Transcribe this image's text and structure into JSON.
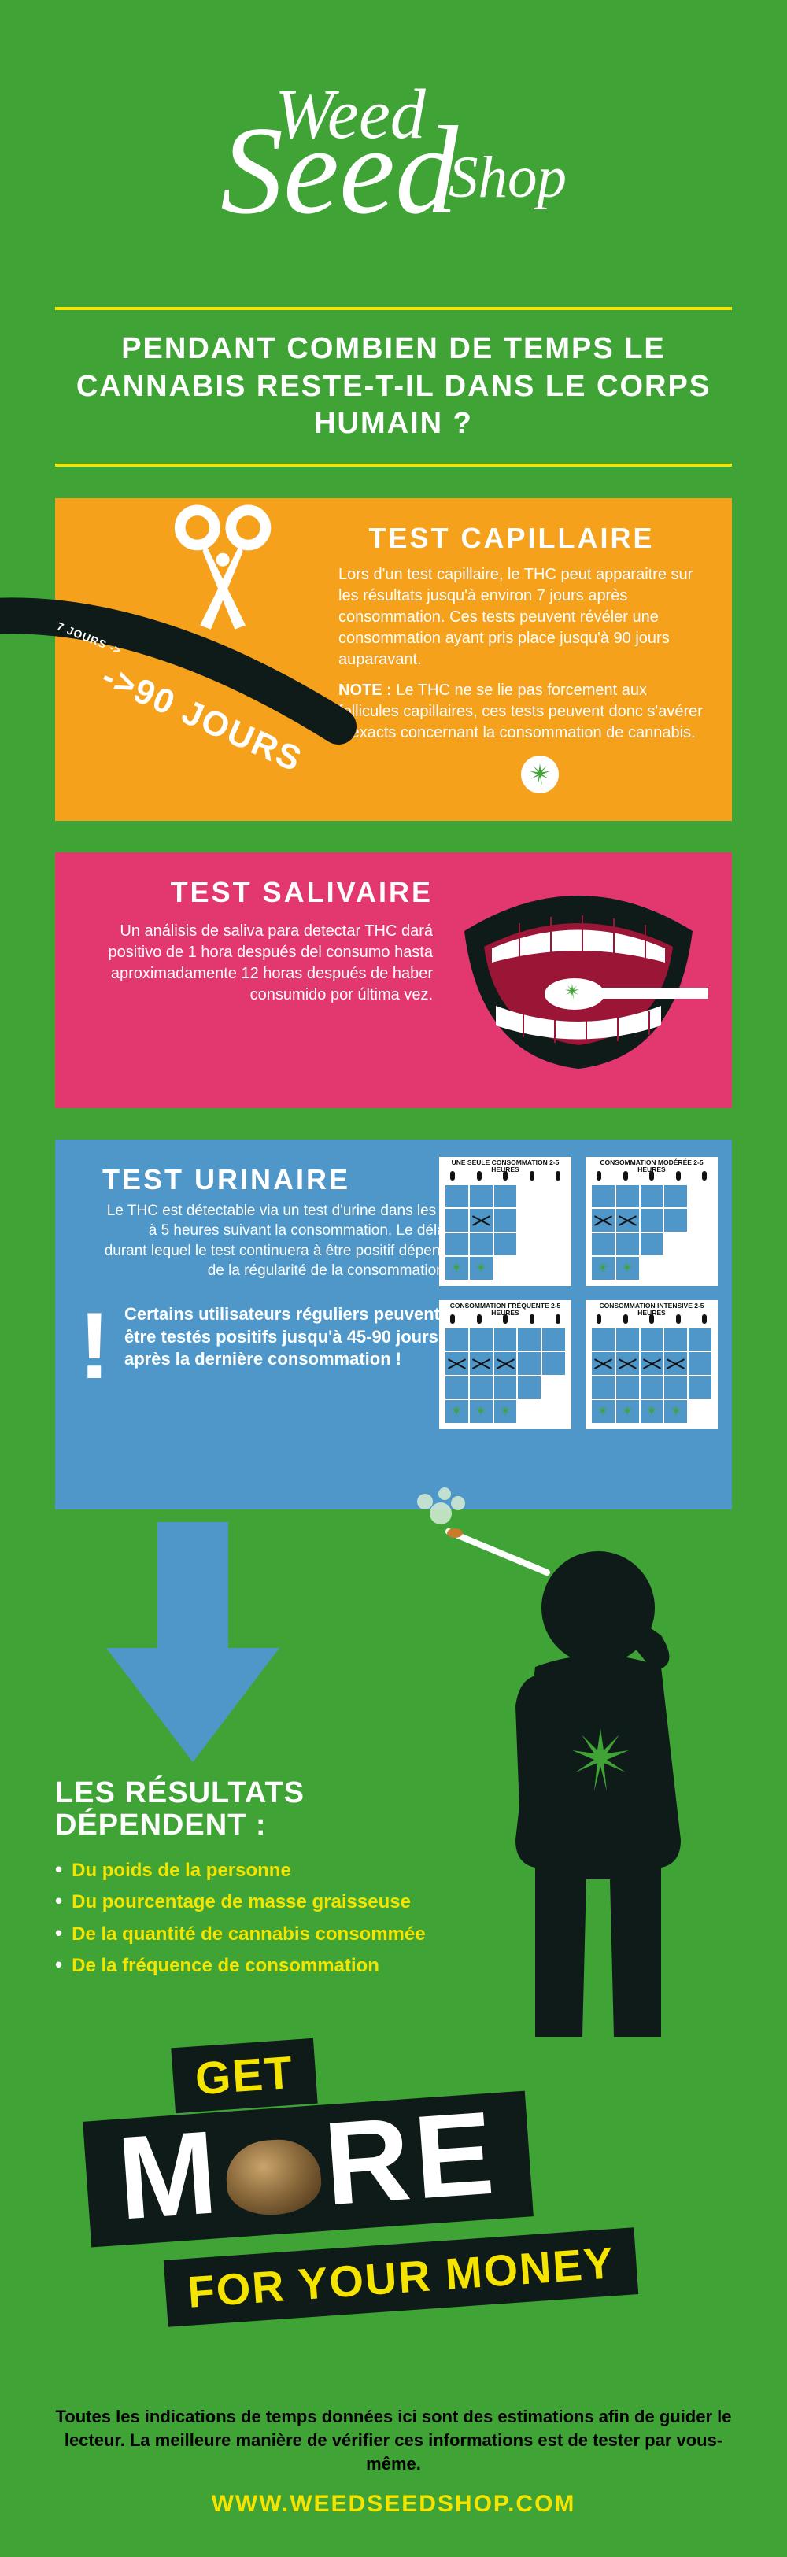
{
  "colors": {
    "bg": "#3fa435",
    "accent_yellow": "#f5e400",
    "panel_orange": "#f6a11c",
    "panel_pink": "#e2386f",
    "panel_blue": "#4f97c8",
    "dark": "#0e1b19",
    "white": "#ffffff",
    "black": "#000000"
  },
  "logo": {
    "line1": "Weed",
    "line2": "Seed",
    "line3": "Shop"
  },
  "title": "PENDANT COMBIEN DE TEMPS LE CANNABIS RESTE-T-IL DANS LE CORPS HUMAIN ?",
  "panel1": {
    "title": "TEST CAPILLAIRE",
    "body": "Lors d'un test capillaire, le THC peut apparaitre sur les résultats jusqu'à environ 7 jours après consommation. Ces tests peuvent révéler une consommation ayant pris place jusqu'à 90 jours auparavant.",
    "note_label": "NOTE :",
    "note": "Le THC ne se lie pas forcement aux follicules capillaires, ces tests peuvent donc s'avérer inexacts concernant la consommation de cannabis.",
    "days7": "7 JOURS ->",
    "days90": "->90 JOURS"
  },
  "panel2": {
    "title": "TEST SALIVAIRE",
    "body": "Un análisis de saliva para detectar THC dará positivo de 1 hora después del consumo hasta aproximadamente 12 horas después de haber consumido por última vez."
  },
  "panel3": {
    "title": "TEST URINAIRE",
    "body": "Le THC est détectable via un test d'urine dans les 2 à 5 heures suivant la consommation. Le délai durant lequel le test continuera à être positif dépend de la régularité de la consommation.",
    "warn": "Certains utilisateurs réguliers peuvent être testés positifs jusqu'à 45-90 jours après la dernière consommation !",
    "cals": [
      {
        "label": "UNE SEULE CONSOMMATION 2-5 HEURES",
        "pattern": [
          1,
          1,
          1,
          0,
          0,
          1,
          2,
          1,
          0,
          0,
          1,
          1,
          1,
          0,
          0,
          3,
          3,
          0,
          0,
          0
        ]
      },
      {
        "label": "CONSOMMATION MODÉRÉE 2-5 HEURES",
        "pattern": [
          1,
          1,
          1,
          1,
          0,
          2,
          2,
          1,
          1,
          0,
          1,
          1,
          1,
          0,
          0,
          3,
          3,
          0,
          0,
          0
        ]
      },
      {
        "label": "CONSOMMATION FRÉQUENTE 2-5 HEURES",
        "pattern": [
          1,
          1,
          1,
          1,
          1,
          2,
          2,
          2,
          1,
          1,
          1,
          1,
          1,
          1,
          0,
          3,
          3,
          3,
          0,
          0
        ]
      },
      {
        "label": "CONSOMMATION INTENSIVE 2-5 HEURES",
        "pattern": [
          1,
          1,
          1,
          1,
          1,
          2,
          2,
          2,
          2,
          1,
          1,
          1,
          1,
          1,
          1,
          3,
          3,
          3,
          3,
          0
        ]
      }
    ]
  },
  "results": {
    "title": "LES RÉSULTATS DÉPENDENT :",
    "items": [
      "Du poids de la personne",
      "Du pourcentage de masse graisseuse",
      "De la quantité de cannabis consommée",
      "De la fréquence de consommation"
    ]
  },
  "getmore": {
    "get": "GET",
    "m": "M",
    "re": "RE",
    "fym": "FOR YOUR MONEY"
  },
  "disclaimer": "Toutes les indications de temps données ici sont des estimations afin de guider le lecteur. La meilleure manière de vérifier ces informations est de tester par vous-même.",
  "url": "WWW.WEEDSEEDSHOP.COM"
}
